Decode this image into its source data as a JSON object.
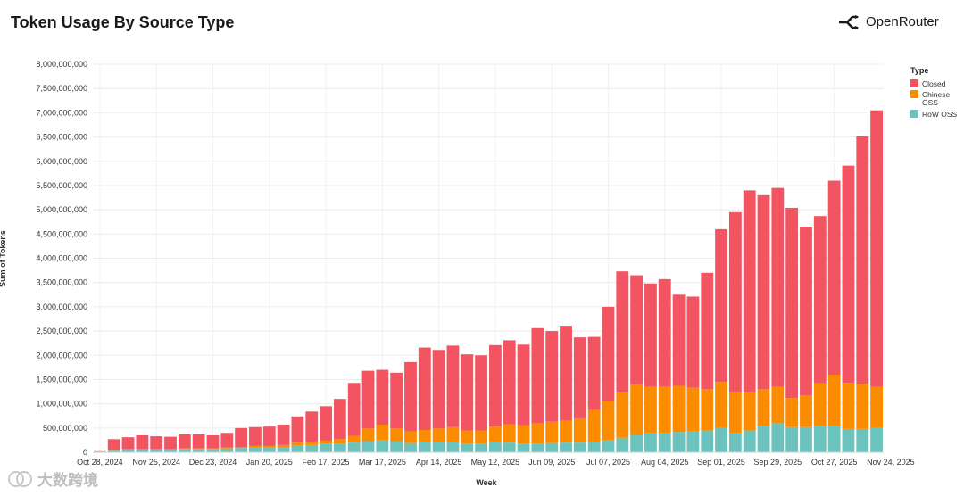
{
  "header": {
    "title": "Token Usage By Source Type",
    "brand_name": "OpenRouter"
  },
  "watermark": {
    "text": "大数跨境"
  },
  "chart_data": {
    "type": "bar",
    "stacked": true,
    "title": "Token Usage By Source Type",
    "xlabel": "Week",
    "ylabel": "Sum of Tokens",
    "ylim": [
      0,
      8000000000
    ],
    "y_ticks": [
      0,
      500000000,
      1000000000,
      1500000000,
      2000000000,
      2500000000,
      3000000000,
      3500000000,
      4000000000,
      4500000000,
      5000000000,
      5500000000,
      6000000000,
      6500000000,
      7000000000,
      7500000000,
      8000000000
    ],
    "y_tick_labels": [
      "0",
      "500,000,000",
      "1,000,000,000",
      "1,500,000,000",
      "2,000,000,000",
      "2,500,000,000",
      "3,000,000,000",
      "3,500,000,000",
      "4,000,000,000",
      "4,500,000,000",
      "5,000,000,000",
      "5,500,000,000",
      "6,000,000,000",
      "6,500,000,000",
      "7,000,000,000",
      "7,500,000,000",
      "8,000,000,000"
    ],
    "x_tick_labels": [
      "Oct 28, 2024",
      "Nov 25, 2024",
      "Dec 23, 2024",
      "Jan 20, 2025",
      "Feb 17, 2025",
      "Mar 17, 2025",
      "Apr 14, 2025",
      "May 12, 2025",
      "Jun 09, 2025",
      "Jul 07, 2025",
      "Aug 04, 2025",
      "Sep 01, 2025",
      "Sep 29, 2025",
      "Oct 27, 2025",
      "Nov 24, 2025"
    ],
    "x_tick_every": 4,
    "legend": {
      "title": "Type",
      "position": "right",
      "entries": [
        "Closed",
        "Chinese OSS",
        "RoW OSS"
      ]
    },
    "colors": {
      "Closed": "#f25461",
      "Chinese OSS": "#fb8c00",
      "RoW OSS": "#6cc3bd"
    },
    "series": [
      {
        "name": "RoW OSS",
        "values": [
          15000000,
          50000000,
          60000000,
          60000000,
          60000000,
          60000000,
          70000000,
          70000000,
          70000000,
          80000000,
          90000000,
          100000000,
          100000000,
          110000000,
          140000000,
          150000000,
          170000000,
          180000000,
          200000000,
          230000000,
          250000000,
          230000000,
          190000000,
          210000000,
          220000000,
          220000000,
          180000000,
          180000000,
          210000000,
          200000000,
          180000000,
          180000000,
          190000000,
          200000000,
          200000000,
          220000000,
          250000000,
          300000000,
          350000000,
          400000000,
          400000000,
          420000000,
          430000000,
          450000000,
          500000000,
          400000000,
          450000000,
          550000000,
          600000000,
          520000000,
          520000000,
          550000000,
          550000000,
          480000000,
          480000000,
          500000000
        ]
      },
      {
        "name": "Chinese OSS",
        "values": [
          3000000,
          5000000,
          5000000,
          5000000,
          5000000,
          5000000,
          10000000,
          10000000,
          10000000,
          20000000,
          20000000,
          30000000,
          30000000,
          40000000,
          60000000,
          60000000,
          70000000,
          90000000,
          140000000,
          260000000,
          320000000,
          260000000,
          240000000,
          250000000,
          270000000,
          300000000,
          270000000,
          270000000,
          320000000,
          380000000,
          380000000,
          420000000,
          440000000,
          450000000,
          500000000,
          650000000,
          800000000,
          950000000,
          1050000000,
          950000000,
          950000000,
          950000000,
          900000000,
          850000000,
          950000000,
          850000000,
          800000000,
          750000000,
          750000000,
          600000000,
          650000000,
          870000000,
          1050000000,
          950000000,
          930000000,
          850000000
        ]
      },
      {
        "name": "Closed",
        "values": [
          22000000,
          215000000,
          245000000,
          285000000,
          265000000,
          255000000,
          290000000,
          290000000,
          270000000,
          300000000,
          390000000,
          390000000,
          400000000,
          420000000,
          540000000,
          630000000,
          710000000,
          830000000,
          1090000000,
          1190000000,
          1130000000,
          1150000000,
          1430000000,
          1700000000,
          1620000000,
          1680000000,
          1570000000,
          1550000000,
          1680000000,
          1730000000,
          1660000000,
          1960000000,
          1870000000,
          1960000000,
          1670000000,
          1510000000,
          1950000000,
          2480000000,
          2250000000,
          2130000000,
          2220000000,
          1880000000,
          1880000000,
          2400000000,
          3150000000,
          3700000000,
          4150000000,
          4000000000,
          4100000000,
          3920000000,
          3480000000,
          3450000000,
          4000000000,
          4480000000,
          5100000000,
          5700000000
        ]
      }
    ]
  }
}
